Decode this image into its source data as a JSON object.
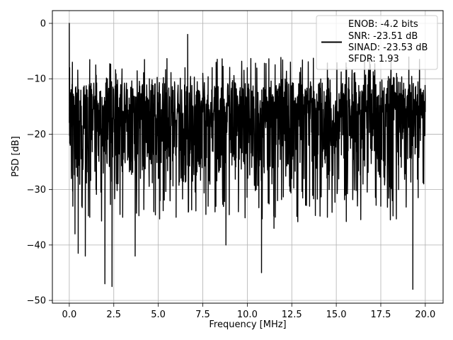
{
  "chart_data": {
    "type": "line",
    "xlabel": "Frequency [MHz]",
    "ylabel": "PSD [dB]",
    "xlim": [
      -0.95,
      21.0
    ],
    "ylim": [
      -50.5,
      2.3
    ],
    "xticks": [
      0.0,
      2.5,
      5.0,
      7.5,
      10.0,
      12.5,
      15.0,
      17.5,
      20.0
    ],
    "xtick_labels": [
      "0.0",
      "2.5",
      "5.0",
      "7.5",
      "10.0",
      "12.5",
      "15.0",
      "17.5",
      "20.0"
    ],
    "yticks": [
      0,
      -10,
      -20,
      -30,
      -40,
      -50
    ],
    "ytick_labels": [
      "0",
      "−10",
      "−20",
      "−30",
      "−40",
      "−50"
    ],
    "grid": true,
    "legend": {
      "placement": "top-right",
      "entries": [
        "ENOB: -4.2 bits",
        "SNR: -23.51 dB",
        "SINAD: -23.53 dB",
        "SFDR: 1.93"
      ]
    },
    "series": [
      {
        "color": "#000000",
        "x": [
          0.0,
          0.02,
          0.05,
          0.08,
          0.12,
          0.16,
          0.2,
          0.26,
          0.32,
          0.4,
          0.5,
          0.6,
          0.7,
          0.8,
          0.9,
          1.0,
          1.15,
          1.3,
          1.5,
          1.75,
          2.0,
          2.3,
          2.4,
          2.6,
          3.0,
          3.5,
          3.7,
          3.8,
          4.2,
          4.5,
          5.0,
          5.5,
          6.0,
          6.5,
          6.65,
          7.0,
          7.5,
          7.8,
          8.0,
          8.5,
          8.8,
          9.0,
          9.5,
          10.0,
          10.5,
          10.8,
          11.0,
          11.5,
          11.7,
          12.0,
          12.5,
          13.0,
          13.5,
          14.0,
          14.5,
          15.0,
          15.5,
          16.0,
          16.5,
          17.0,
          17.5,
          18.0,
          18.5,
          19.0,
          19.3,
          19.6,
          20.0
        ],
        "y": [
          0.0,
          -8.0,
          -22.0,
          -14.0,
          -28.0,
          -11.0,
          -33.0,
          -18.0,
          -38.0,
          -26.0,
          -41.5,
          -14.0,
          -33.0,
          -20.0,
          -42.0,
          -12.0,
          -35.0,
          -16.0,
          -30.0,
          -20.0,
          -47.0,
          -22.0,
          -47.5,
          -14.0,
          -35.0,
          -18.0,
          -42.0,
          -24.0,
          -30.0,
          -10.0,
          -28.0,
          -12.0,
          -35.0,
          -8.0,
          -2.0,
          -20.0,
          -9.0,
          -33.0,
          -12.0,
          -26.0,
          -40.0,
          -14.0,
          -34.0,
          -8.0,
          -30.0,
          -45.0,
          -12.0,
          -37.0,
          -32.0,
          -10.0,
          -28.0,
          -8.0,
          -33.0,
          -11.0,
          -35.0,
          -14.0,
          -31.0,
          -9.0,
          -29.0,
          -12.0,
          -33.0,
          -10.0,
          -30.0,
          -13.0,
          -48.0,
          -20.0,
          -16.0
        ]
      }
    ]
  }
}
